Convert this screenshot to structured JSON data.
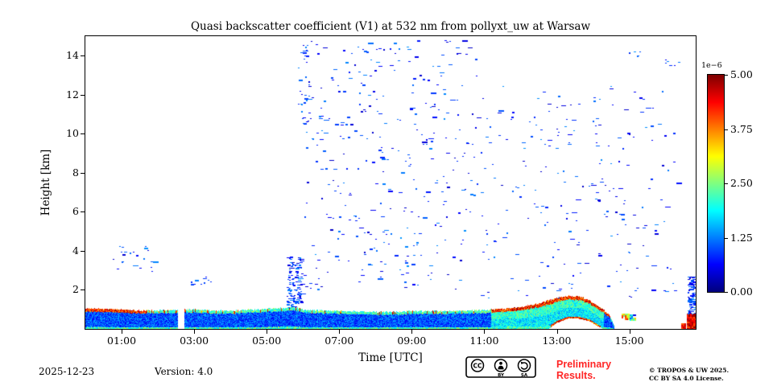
{
  "chart_data": {
    "type": "heatmap",
    "title": "Quasi backscatter coefficient (V1) at 532 nm from pollyxt_uw at Warsaw",
    "xlabel": "Time [UTC]",
    "ylabel": "Height [km]",
    "x_range_hours": [
      0,
      16.83
    ],
    "y_range_km": [
      0,
      15
    ],
    "x_ticks": [
      {
        "h": 1,
        "label": "01:00"
      },
      {
        "h": 3,
        "label": "03:00"
      },
      {
        "h": 5,
        "label": "05:00"
      },
      {
        "h": 7,
        "label": "07:00"
      },
      {
        "h": 9,
        "label": "09:00"
      },
      {
        "h": 11,
        "label": "11:00"
      },
      {
        "h": 13,
        "label": "13:00"
      },
      {
        "h": 15,
        "label": "15:00"
      }
    ],
    "y_ticks": [
      {
        "km": 2,
        "label": "2"
      },
      {
        "km": 4,
        "label": "4"
      },
      {
        "km": 6,
        "label": "6"
      },
      {
        "km": 8,
        "label": "8"
      },
      {
        "km": 10,
        "label": "10"
      },
      {
        "km": 12,
        "label": "12"
      },
      {
        "km": 14,
        "label": "14"
      }
    ],
    "colorbar": {
      "scale_label": "1e−6",
      "colormap": "jet",
      "vmin": 0,
      "vmax": 5,
      "ticks": [
        {
          "v": 5,
          "label": "5.00"
        },
        {
          "v": 3.75,
          "label": "3.75"
        },
        {
          "v": 2.5,
          "label": "2.50"
        },
        {
          "v": 1.25,
          "label": "1.25"
        },
        {
          "v": 0,
          "label": "0.00"
        }
      ]
    },
    "seed": 42,
    "features": {
      "data_gaps": [
        [
          2.55,
          2.72
        ]
      ],
      "boundary_layer_top_km": [
        [
          0,
          1.02
        ],
        [
          0.5,
          1.0
        ],
        [
          1,
          0.98
        ],
        [
          1.5,
          0.93
        ],
        [
          2,
          0.92
        ],
        [
          2.5,
          0.95
        ],
        [
          3,
          0.98
        ],
        [
          3.5,
          0.92
        ],
        [
          4,
          0.9
        ],
        [
          4.5,
          0.95
        ],
        [
          5,
          1.0
        ],
        [
          5.5,
          1.05
        ],
        [
          5.8,
          1.1
        ],
        [
          6,
          0.98
        ],
        [
          6.5,
          0.92
        ],
        [
          7,
          0.9
        ],
        [
          7.5,
          0.88
        ],
        [
          8,
          0.85
        ],
        [
          8.5,
          0.85
        ],
        [
          9,
          0.88
        ],
        [
          9.5,
          0.9
        ],
        [
          10,
          0.9
        ],
        [
          10.5,
          0.92
        ],
        [
          11,
          0.95
        ],
        [
          11.5,
          1.0
        ],
        [
          12,
          1.1
        ],
        [
          12.4,
          1.25
        ],
        [
          12.8,
          1.45
        ],
        [
          13.1,
          1.6
        ],
        [
          13.4,
          1.68
        ],
        [
          13.7,
          1.6
        ],
        [
          13.9,
          1.45
        ],
        [
          14.1,
          1.2
        ],
        [
          14.3,
          0.95
        ],
        [
          14.45,
          0.7
        ],
        [
          14.55,
          0.3
        ],
        [
          14.6,
          0
        ],
        [
          16.83,
          0
        ]
      ],
      "boundary_layer_bottom_km": [
        [
          0,
          0
        ],
        [
          12.8,
          0
        ],
        [
          13.0,
          0.28
        ],
        [
          13.3,
          0.5
        ],
        [
          13.6,
          0.5
        ],
        [
          13.9,
          0.38
        ],
        [
          14.1,
          0.15
        ],
        [
          14.25,
          0
        ],
        [
          16.83,
          0
        ]
      ],
      "red_cap_intervals": [
        [
          0,
          1.7
        ],
        [
          11.2,
          14.45
        ]
      ],
      "enhanced_intervals": [
        [
          11.2,
          14.3
        ]
      ],
      "speckle_regions": [
        {
          "t0": 5.9,
          "t1": 10.8,
          "h0": 5.5,
          "h1": 14.8,
          "count": 260
        },
        {
          "t0": 6.0,
          "t1": 10.5,
          "h0": 2.0,
          "h1": 5.5,
          "count": 90
        },
        {
          "t0": 10.8,
          "t1": 16.3,
          "h0": 1.5,
          "h1": 12.5,
          "count": 230
        },
        {
          "t0": 0.7,
          "t1": 1.9,
          "h0": 2.9,
          "h1": 4.3,
          "count": 22
        },
        {
          "t0": 5.55,
          "t1": 5.95,
          "h0": 1.1,
          "h1": 3.7,
          "count": 130
        },
        {
          "t0": 5.85,
          "t1": 6.2,
          "h0": 10.5,
          "h1": 14.6,
          "count": 30
        },
        {
          "t0": 2.9,
          "t1": 3.5,
          "h0": 2.2,
          "h1": 2.7,
          "count": 10
        },
        {
          "t0": 16.6,
          "t1": 16.78,
          "h0": 0.8,
          "h1": 2.7,
          "count": 90
        },
        {
          "t0": 14.95,
          "t1": 15.35,
          "h0": 14.0,
          "h1": 14.35,
          "count": 6
        },
        {
          "t0": 15.9,
          "t1": 16.35,
          "h0": 13.3,
          "h1": 13.9,
          "count": 6
        }
      ],
      "patches": [
        {
          "t0": 14.78,
          "t1": 14.97,
          "h0": 0.48,
          "h1": 0.8,
          "v": 3.6,
          "noise": 1.2,
          "skip": 0.15
        },
        {
          "t0": 15.0,
          "t1": 15.14,
          "h0": 0.45,
          "h1": 0.75,
          "v": 2.0,
          "noise": 1.6,
          "skip": 0.2
        },
        {
          "t0": 16.42,
          "t1": 16.52,
          "h0": 0.0,
          "h1": 0.3,
          "v": 4.3,
          "noise": 0.5,
          "skip": 0.1
        },
        {
          "t0": 16.58,
          "t1": 16.83,
          "h0": 0.0,
          "h1": 0.8,
          "v": 4.5,
          "noise": 0.6,
          "skip": 0
        }
      ]
    }
  },
  "footer": {
    "date": "2025-12-23",
    "version": "Version: 4.0",
    "preliminary_line1": "Preliminary",
    "preliminary_line2": "Results.",
    "copyright_line1": "© TROPOS & UW 2025.",
    "copyright_line2": "CC BY SA 4.0 License.",
    "badge": {
      "cc": "CC",
      "by": "BY",
      "sa": "SA"
    }
  },
  "colors": {
    "preliminary": "#ff2626",
    "axis": "#000000"
  }
}
